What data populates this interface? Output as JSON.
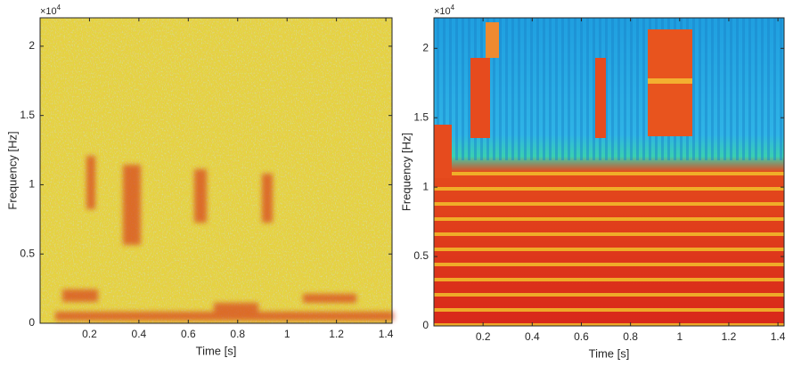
{
  "chart_data": [
    {
      "type": "heatmap",
      "xlabel": "Time [s]",
      "ylabel": "Frequency [Hz]",
      "y_exponent_base": "×10",
      "y_exponent": "4",
      "xlim": [
        0,
        1.425
      ],
      "xticks": [
        0.2,
        0.4,
        0.6,
        0.8,
        1,
        1.2,
        1.4
      ],
      "ylim": [
        0,
        2.205
      ],
      "yticks": [
        0,
        0.5,
        1,
        1.5,
        2
      ]
    },
    {
      "type": "heatmap",
      "xlabel": "Time [s]",
      "ylabel": "Frequency [Hz]",
      "y_exponent_base": "×10",
      "y_exponent": "4",
      "xlim": [
        0,
        1.425
      ],
      "xticks": [
        0.2,
        0.4,
        0.6,
        0.8,
        1,
        1.2,
        1.4
      ],
      "ylim": [
        0,
        2.22
      ],
      "yticks": [
        0,
        0.5,
        1,
        1.5,
        2
      ]
    }
  ]
}
